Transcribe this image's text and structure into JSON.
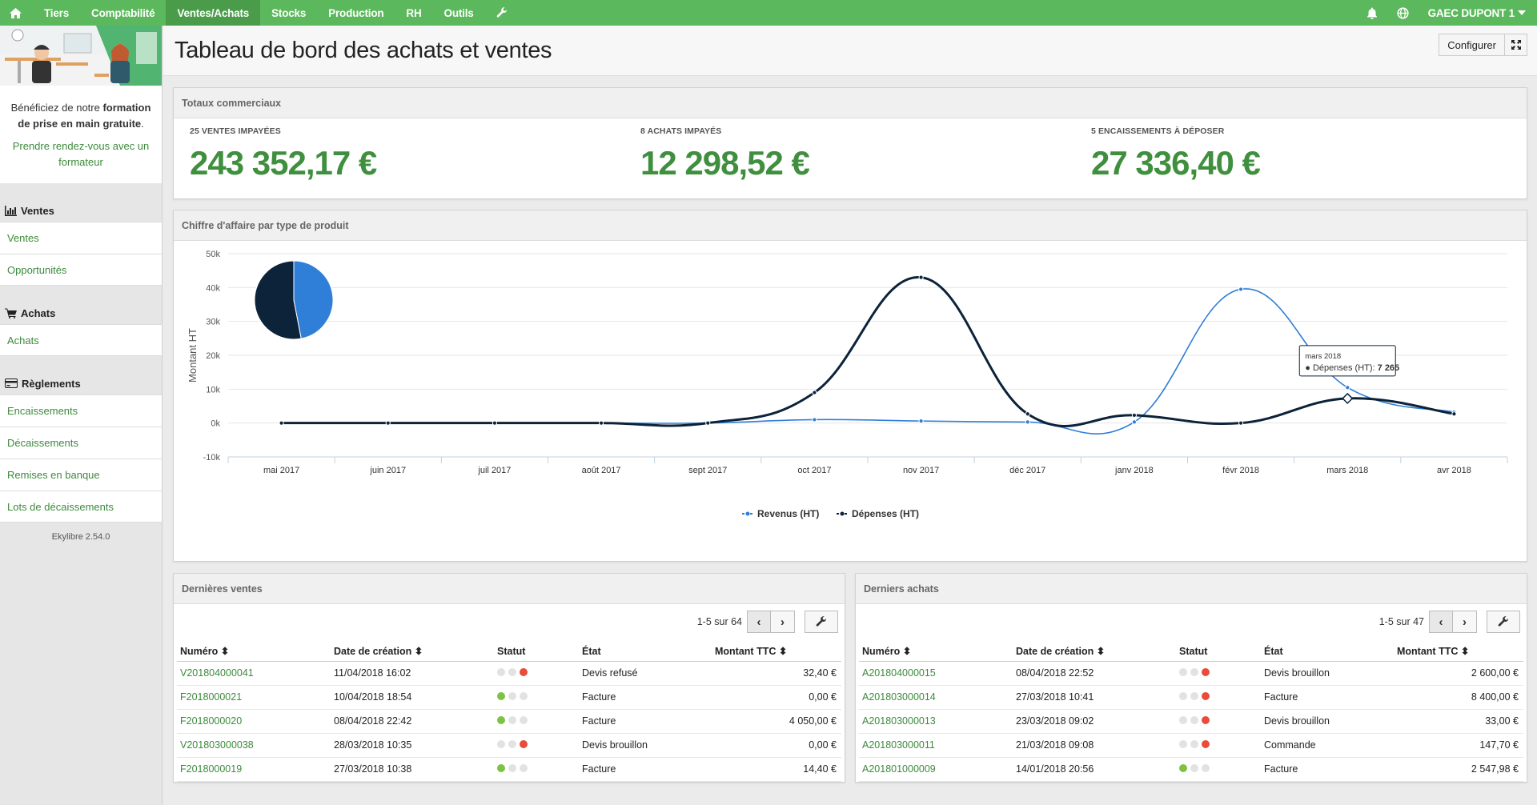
{
  "nav": {
    "items": [
      "Tiers",
      "Comptabilité",
      "Ventes/Achats",
      "Stocks",
      "Production",
      "RH",
      "Outils"
    ],
    "active": "Ventes/Achats",
    "company": "GAEC DUPONT 1",
    "icons": [
      "home-icon",
      "wrench-icon",
      "bell-icon",
      "globe-icon",
      "caret-down-icon"
    ]
  },
  "sidebar": {
    "promo_text_pre": "Bénéficiez de notre ",
    "promo_text_bold": "formation de prise en main gratuite",
    "promo_text_post": ".",
    "promo_link": "Prendre rendez-vous avec un formateur",
    "sections": [
      {
        "title": "Ventes",
        "icon": "bar-chart-icon",
        "links": [
          "Ventes",
          "Opportunités"
        ]
      },
      {
        "title": "Achats",
        "icon": "cart-icon",
        "links": [
          "Achats"
        ]
      },
      {
        "title": "Règlements",
        "icon": "credit-card-icon",
        "links": [
          "Encaissements",
          "Décaissements",
          "Remises en banque",
          "Lots de décaissements"
        ]
      }
    ],
    "version": "Ekylibre 2.54.0"
  },
  "header": {
    "title": "Tableau de bord des achats et ventes",
    "configure_label": "Configurer"
  },
  "totals": {
    "title": "Totaux commerciaux",
    "items": [
      {
        "label": "25 VENTES IMPAYÉES",
        "value": "243 352,17 €"
      },
      {
        "label": "8 ACHATS IMPAYÉS",
        "value": "12 298,52 €"
      },
      {
        "label": "5 ENCAISSEMENTS À DÉPOSER",
        "value": "27 336,40 €"
      }
    ]
  },
  "chart_panel": {
    "title": "Chiffre d'affaire par type de produit"
  },
  "chart_data": {
    "type": "line",
    "categories": [
      "mai 2017",
      "juin 2017",
      "juil 2017",
      "août 2017",
      "sept 2017",
      "oct 2017",
      "nov 2017",
      "déc 2017",
      "janv 2018",
      "févr 2018",
      "mars 2018",
      "avr 2018"
    ],
    "ylabel": "Montant HT",
    "ylim": [
      -10000,
      50000
    ],
    "yticks": [
      "-10k",
      "0k",
      "10k",
      "20k",
      "30k",
      "40k",
      "50k"
    ],
    "grid": true,
    "legend": "bottom",
    "series": [
      {
        "name": "Revenus (HT)",
        "color": "#2f7ed8",
        "values": [
          0,
          0,
          0,
          0,
          0,
          1000,
          600,
          300,
          300,
          39500,
          10500,
          3200
        ]
      },
      {
        "name": "Dépenses (HT)",
        "color": "#0d233a",
        "values": [
          0,
          0,
          0,
          0,
          0,
          9000,
          43000,
          2700,
          2300,
          0,
          7265,
          2700
        ]
      }
    ],
    "pie": [
      {
        "name": "Revenus (HT)",
        "value": 47,
        "color": "#2f7ed8"
      },
      {
        "name": "Dépenses (HT)",
        "value": 53,
        "color": "#0d233a"
      }
    ],
    "tooltip": {
      "title": "mars 2018",
      "label": "● Dépenses (HT): ",
      "value": "7 265"
    }
  },
  "sales": {
    "title": "Dernières ventes",
    "pager": "1-5 sur 64",
    "columns": [
      "Numéro",
      "Date de création",
      "Statut",
      "État",
      "Montant TTC"
    ],
    "rows": [
      {
        "num": "V201804000041",
        "date": "11/04/2018 16:02",
        "status": "red",
        "state": "Devis refusé",
        "amount": "32,40 €"
      },
      {
        "num": "F2018000021",
        "date": "10/04/2018 18:54",
        "status": "green",
        "state": "Facture",
        "amount": "0,00 €"
      },
      {
        "num": "F2018000020",
        "date": "08/04/2018 22:42",
        "status": "green",
        "state": "Facture",
        "amount": "4 050,00 €"
      },
      {
        "num": "V201803000038",
        "date": "28/03/2018 10:35",
        "status": "red",
        "state": "Devis brouillon",
        "amount": "0,00 €"
      },
      {
        "num": "F2018000019",
        "date": "27/03/2018 10:38",
        "status": "green",
        "state": "Facture",
        "amount": "14,40 €"
      }
    ]
  },
  "purchases": {
    "title": "Derniers achats",
    "pager": "1-5 sur 47",
    "columns": [
      "Numéro",
      "Date de création",
      "Statut",
      "État",
      "Montant TTC"
    ],
    "rows": [
      {
        "num": "A201804000015",
        "date": "08/04/2018 22:52",
        "status": "red",
        "state": "Devis brouillon",
        "amount": "2 600,00 €"
      },
      {
        "num": "A201803000014",
        "date": "27/03/2018 10:41",
        "status": "red",
        "state": "Facture",
        "amount": "8 400,00 €"
      },
      {
        "num": "A201803000013",
        "date": "23/03/2018 09:02",
        "status": "red",
        "state": "Devis brouillon",
        "amount": "33,00 €"
      },
      {
        "num": "A201803000011",
        "date": "21/03/2018 09:08",
        "status": "red",
        "state": "Commande",
        "amount": "147,70 €"
      },
      {
        "num": "A201801000009",
        "date": "14/01/2018 20:56",
        "status": "green",
        "state": "Facture",
        "amount": "2 547,98 €"
      }
    ]
  },
  "colors": {
    "accent": "#5cb85c",
    "link": "#3c8a3c",
    "value": "#3f8f3f",
    "status_red": "#e74c3c",
    "status_green": "#7dc242"
  }
}
